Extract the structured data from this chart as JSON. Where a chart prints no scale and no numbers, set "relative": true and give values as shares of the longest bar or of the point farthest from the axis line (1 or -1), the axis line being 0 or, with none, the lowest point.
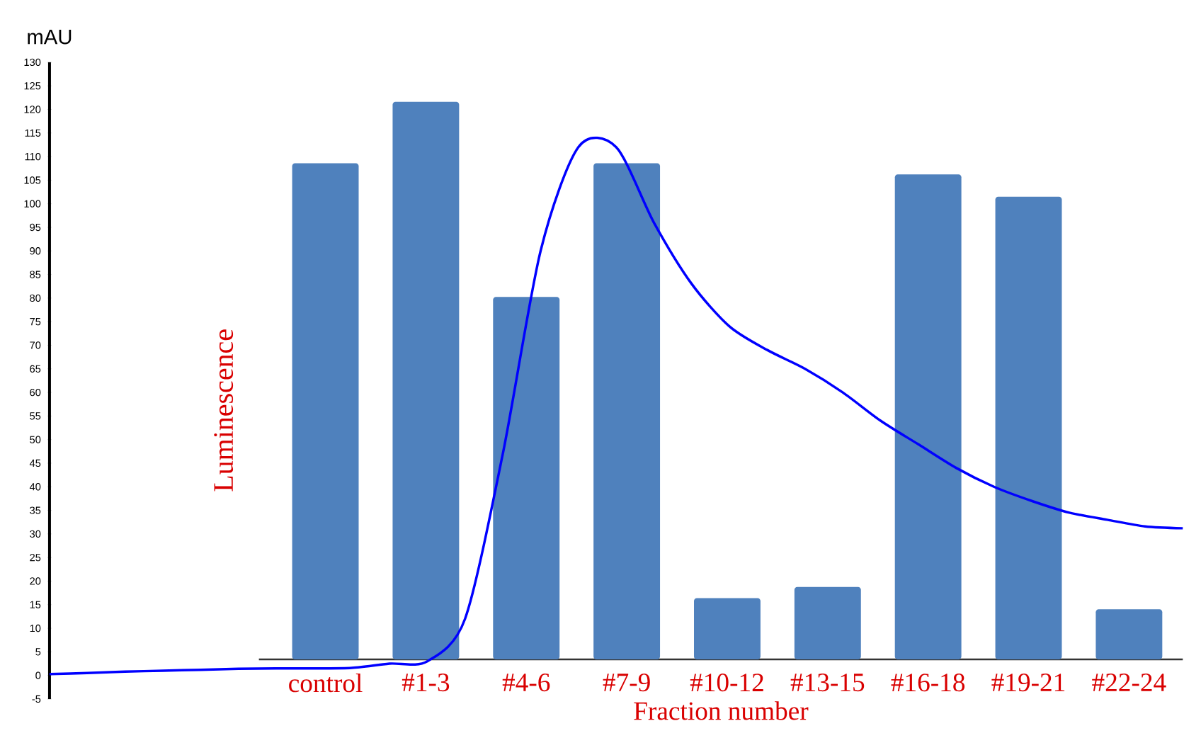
{
  "chart_data": [
    {
      "type": "bar",
      "relative": true,
      "categories": [
        "control",
        "#1-3",
        "#4-6",
        "#7-9",
        "#10-12",
        "#13-15",
        "#16-18",
        "#19-21",
        "#22-24"
      ],
      "xlabel": "Fraction number",
      "ylabel": "Luminescence",
      "color": "#4f81bd",
      "values": [
        0.89,
        1,
        0.65,
        0.89,
        0.11,
        0.13,
        0.87,
        0.83,
        0.09
      ]
    },
    {
      "type": "line",
      "ylabel": "mAU",
      "tick_labels": "y",
      "color": "#0000ff",
      "categories": [
        null,
        null,
        null,
        null,
        null,
        null,
        null,
        null,
        null,
        null,
        null,
        null,
        null,
        null,
        null,
        null,
        null,
        null,
        null,
        null,
        null,
        null,
        null,
        null,
        null,
        null,
        null,
        null,
        null,
        null,
        null
      ],
      "values": [
        0.3,
        0.5,
        0.8,
        1.0,
        1.2,
        1.4,
        1.5,
        1.5,
        1.6,
        2.5,
        3.0,
        12,
        47,
        90,
        112,
        112,
        96,
        83,
        74,
        69,
        65,
        60,
        54,
        49,
        44,
        40,
        37,
        34.5,
        33,
        31.6,
        31.2
      ],
      "ylim": [
        -5,
        130
      ],
      "yticks": [
        -5,
        0,
        5,
        10,
        15,
        20,
        25,
        30,
        35,
        40,
        45,
        50,
        55,
        60,
        65,
        70,
        75,
        80,
        85,
        90,
        95,
        100,
        105,
        110,
        115,
        120,
        125,
        130
      ]
    }
  ]
}
